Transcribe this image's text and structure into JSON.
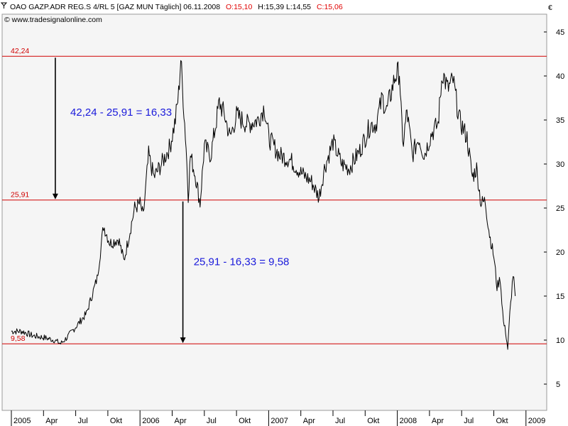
{
  "header": {
    "instrument": "OAO GAZP.ADR REG.S 4/RL 5 [GAZ MUN  Täglich] 06.11.2008",
    "open": "O:15,10",
    "hlc": "H:15,39 L:14,55",
    "close": "C:15,06",
    "watermark": "© www.tradesignalonline.com",
    "currency": "€"
  },
  "colors": {
    "price": "#000000",
    "hline": "#d00000",
    "annotation": "#1a1adb",
    "plot_bg": "#f5f5f5"
  },
  "chart_data": {
    "type": "line",
    "title": "OAO GAZP.ADR REG.S 4/RL 5 [GAZ MUN  Täglich] 06.11.2008",
    "ylim": [
      3,
      49
    ],
    "y_ticks": [
      5,
      10,
      15,
      20,
      25,
      30,
      35,
      40,
      45
    ],
    "y_tick_labels": [
      "5",
      "10",
      "15",
      "20",
      "25",
      "30",
      "35",
      "40",
      "45"
    ],
    "x_ticks": [
      "2005",
      "Apr",
      "Jul",
      "Okt",
      "2006",
      "Apr",
      "Jul",
      "Okt",
      "2007",
      "Apr",
      "Jul",
      "Okt",
      "2008",
      "Apr",
      "Jul",
      "Okt",
      "2009"
    ],
    "x_tick_months": [
      0,
      3,
      6,
      9,
      12,
      15,
      18,
      21,
      24,
      27,
      30,
      33,
      36,
      39,
      42,
      45,
      48
    ],
    "grid": false,
    "series": [
      {
        "points": [
          [
            0.0,
            11.0
          ],
          [
            1.0,
            11.0
          ],
          [
            2.0,
            10.5
          ],
          [
            3.0,
            10.3
          ],
          [
            4.0,
            10.0
          ],
          [
            4.6,
            9.6
          ],
          [
            5.2,
            10.3
          ],
          [
            6.0,
            11.5
          ],
          [
            7.0,
            13.0
          ],
          [
            8.0,
            17.0
          ],
          [
            8.6,
            23.0
          ],
          [
            9.2,
            21.0
          ],
          [
            10.0,
            21.5
          ],
          [
            10.5,
            19.0
          ],
          [
            11.0,
            22.0
          ],
          [
            11.5,
            25.0
          ],
          [
            12.0,
            25.5
          ],
          [
            12.3,
            24.0
          ],
          [
            12.8,
            31.0
          ],
          [
            13.3,
            28.5
          ],
          [
            14.0,
            30.0
          ],
          [
            14.8,
            32.0
          ],
          [
            15.3,
            35.0
          ],
          [
            15.6,
            38.0
          ],
          [
            15.8,
            42.0
          ],
          [
            16.1,
            36.0
          ],
          [
            16.3,
            32.0
          ],
          [
            16.5,
            26.5
          ],
          [
            16.7,
            31.0
          ],
          [
            17.2,
            28.5
          ],
          [
            17.6,
            25.5
          ],
          [
            18.0,
            32.0
          ],
          [
            18.6,
            31.0
          ],
          [
            19.0,
            34.0
          ],
          [
            19.4,
            37.0
          ],
          [
            19.9,
            35.5
          ],
          [
            20.4,
            33.0
          ],
          [
            21.0,
            35.5
          ],
          [
            22.0,
            34.5
          ],
          [
            23.0,
            35.0
          ],
          [
            23.6,
            36.5
          ],
          [
            24.0,
            33.0
          ],
          [
            25.0,
            31.0
          ],
          [
            26.0,
            30.5
          ],
          [
            27.0,
            29.0
          ],
          [
            28.0,
            28.0
          ],
          [
            28.7,
            26.2
          ],
          [
            29.2,
            29.5
          ],
          [
            30.0,
            32.5
          ],
          [
            30.8,
            30.0
          ],
          [
            31.5,
            29.5
          ],
          [
            32.5,
            31.5
          ],
          [
            33.5,
            34.5
          ],
          [
            34.0,
            34.5
          ],
          [
            34.6,
            37.5
          ],
          [
            35.0,
            36.0
          ],
          [
            35.8,
            40.0
          ],
          [
            36.2,
            40.5
          ],
          [
            36.5,
            32.0
          ],
          [
            36.9,
            36.0
          ],
          [
            37.4,
            31.0
          ],
          [
            38.0,
            33.0
          ],
          [
            38.5,
            31.0
          ],
          [
            39.2,
            33.5
          ],
          [
            39.8,
            34.5
          ],
          [
            40.2,
            40.5
          ],
          [
            40.7,
            38.5
          ],
          [
            41.2,
            39.5
          ],
          [
            41.8,
            35.0
          ],
          [
            42.5,
            33.0
          ],
          [
            43.0,
            28.5
          ],
          [
            43.4,
            29.5
          ],
          [
            43.8,
            25.5
          ],
          [
            44.2,
            25.8
          ],
          [
            44.6,
            22.0
          ],
          [
            45.0,
            19.5
          ],
          [
            45.3,
            16.0
          ],
          [
            45.6,
            17.0
          ],
          [
            45.9,
            12.0
          ],
          [
            46.1,
            11.0
          ],
          [
            46.3,
            9.0
          ],
          [
            46.5,
            13.0
          ],
          [
            46.8,
            17.5
          ],
          [
            47.0,
            15.0
          ]
        ]
      }
    ],
    "hlines": [
      {
        "value": 42.24,
        "label": "42,24"
      },
      {
        "value": 25.91,
        "label": "25,91"
      },
      {
        "value": 9.58,
        "label": "9,58"
      }
    ],
    "arrows": [
      {
        "x": 4.1,
        "from": 42.24,
        "to": 25.91
      },
      {
        "x": 16.0,
        "from": 25.91,
        "to": 9.58
      }
    ],
    "annotations": [
      {
        "text": "42,24 - 25,91 = 16,33",
        "x": 5.5,
        "y": 35.5
      },
      {
        "text": "25,91 - 16,33 = 9,58",
        "x": 17.0,
        "y": 18.5
      }
    ]
  }
}
